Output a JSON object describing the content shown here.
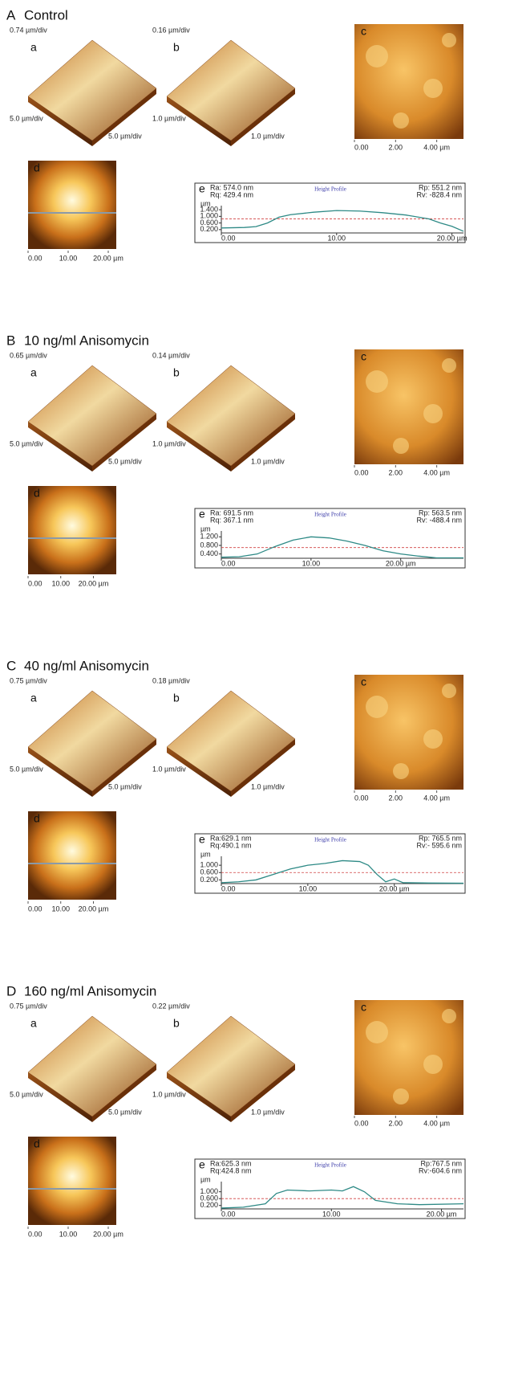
{
  "sections": [
    {
      "letter": "A",
      "title": "Control",
      "panel_a": {
        "label": "a",
        "z_scale": "0.74 µm/div",
        "y_scale": "5.0 µm/div",
        "x_scale": "5.0 µm/div"
      },
      "panel_b": {
        "label": "b",
        "z_scale": "0.16 µm/div",
        "y_scale": "1.0 µm/div",
        "x_scale": "1.0 µm/div"
      },
      "panel_c": {
        "label": "c",
        "xlim": [
          0,
          5.3
        ],
        "xticks": [
          {
            "value": 0,
            "label": "0.00"
          },
          {
            "value": 2,
            "label": "2.00"
          },
          {
            "value": 4,
            "label": "4.00 µm"
          }
        ]
      },
      "panel_d": {
        "label": "d",
        "xlim": [
          0,
          22
        ],
        "xticks": [
          {
            "value": 0,
            "label": "0.00"
          },
          {
            "value": 10,
            "label": "10.00"
          },
          {
            "value": 20,
            "label": "20.00 µm"
          }
        ]
      },
      "panel_e": {
        "label": "e",
        "title": "Height Profile",
        "unit": "µm",
        "stats_left": [
          "Ra: 574.0 nm",
          "Rq: 429.4 nm"
        ],
        "stats_right": [
          "Rp: 551.2 nm",
          "Rv: -828.4 nm"
        ],
        "xlim": [
          0,
          21
        ],
        "ylim": [
          0,
          1.55
        ],
        "xticks": [
          {
            "value": 0,
            "label": "0.00"
          },
          {
            "value": 10,
            "label": "10.00"
          },
          {
            "value": 20,
            "label": "20.00 µm"
          }
        ],
        "yticks": [
          {
            "value": 0.2,
            "label": "0.200"
          },
          {
            "value": 0.6,
            "label": "0.600"
          },
          {
            "value": 1,
            "label": "1.000"
          },
          {
            "value": 1.4,
            "label": "1.400"
          }
        ],
        "reference_line": 0.85,
        "profile": {
          "x": [
            0,
            2,
            3,
            4,
            5,
            6,
            8,
            10,
            12,
            14,
            16,
            18,
            19,
            20,
            21
          ],
          "y": [
            0.3,
            0.33,
            0.38,
            0.6,
            0.95,
            1.1,
            1.25,
            1.35,
            1.32,
            1.22,
            1.08,
            0.85,
            0.6,
            0.4,
            0.1
          ]
        }
      }
    },
    {
      "letter": "B",
      "title": "10 ng/ml Anisomycin",
      "panel_a": {
        "label": "a",
        "z_scale": "0.65 µm/div",
        "y_scale": "5.0 µm/div",
        "x_scale": "5.0 µm/div"
      },
      "panel_b": {
        "label": "b",
        "z_scale": "0.14 µm/div",
        "y_scale": "1.0 µm/div",
        "x_scale": "1.0 µm/div"
      },
      "panel_c": {
        "label": "c",
        "xlim": [
          0,
          5.3
        ],
        "xticks": [
          {
            "value": 0,
            "label": "0.00"
          },
          {
            "value": 2,
            "label": "2.00"
          },
          {
            "value": 4,
            "label": "4.00 µm"
          }
        ]
      },
      "panel_d": {
        "label": "d",
        "xlim": [
          0,
          27
        ],
        "xticks": [
          {
            "value": 0,
            "label": "0.00"
          },
          {
            "value": 10,
            "label": "10.00"
          },
          {
            "value": 20,
            "label": "20.00 µm"
          }
        ]
      },
      "panel_e": {
        "label": "e",
        "title": "Height Profile",
        "unit": "µm",
        "stats_left": [
          "Ra: 691.5 nm",
          "Rq: 367.1 nm"
        ],
        "stats_right": [
          "Rp: 563.5 nm",
          "Rv: -488.4 nm"
        ],
        "xlim": [
          0,
          27
        ],
        "ylim": [
          0.2,
          1.4
        ],
        "xticks": [
          {
            "value": 0,
            "label": "0.00"
          },
          {
            "value": 10,
            "label": "10.00"
          },
          {
            "value": 20,
            "label": "20.00 µm"
          }
        ],
        "yticks": [
          {
            "value": 0.4,
            "label": "0.400"
          },
          {
            "value": 0.8,
            "label": "0.800"
          },
          {
            "value": 1.2,
            "label": "1.200"
          }
        ],
        "reference_line": 0.7,
        "profile": {
          "x": [
            0,
            2,
            4,
            6,
            8,
            10,
            12,
            14,
            16,
            18,
            20,
            22,
            24,
            27
          ],
          "y": [
            0.25,
            0.27,
            0.4,
            0.75,
            1.05,
            1.2,
            1.15,
            1.0,
            0.8,
            0.55,
            0.4,
            0.3,
            0.22,
            0.22
          ]
        }
      }
    },
    {
      "letter": "C",
      "title": "40 ng/ml Anisomycin",
      "panel_a": {
        "label": "a",
        "z_scale": "0.75 µm/div",
        "y_scale": "5.0 µm/div",
        "x_scale": "5.0 µm/div"
      },
      "panel_b": {
        "label": "b",
        "z_scale": "0.18 µm/div",
        "y_scale": "1.0 µm/div",
        "x_scale": "1.0 µm/div"
      },
      "panel_c": {
        "label": "c",
        "xlim": [
          0,
          5.3
        ],
        "xticks": [
          {
            "value": 0,
            "label": "0.00"
          },
          {
            "value": 2,
            "label": "2.00"
          },
          {
            "value": 4,
            "label": "4.00 µm"
          }
        ]
      },
      "panel_d": {
        "label": "d",
        "xlim": [
          0,
          27
        ],
        "xticks": [
          {
            "value": 0,
            "label": "0.00"
          },
          {
            "value": 10,
            "label": "10.00"
          },
          {
            "value": 20,
            "label": "20.00 µm"
          }
        ]
      },
      "panel_e": {
        "label": "e",
        "title": "Height Profile",
        "unit": "µm",
        "stats_left": [
          "Ra:629.1 nm",
          "Rq:490.1 nm"
        ],
        "stats_right": [
          "Rp: 765.5 nm",
          "Rv:- 595.6 nm"
        ],
        "xlim": [
          0,
          28
        ],
        "ylim": [
          0,
          1.4
        ],
        "xticks": [
          {
            "value": 0,
            "label": "0.00"
          },
          {
            "value": 10,
            "label": "10.00"
          },
          {
            "value": 20,
            "label": "20.00 µm"
          }
        ],
        "yticks": [
          {
            "value": 0.2,
            "label": "0.200"
          },
          {
            "value": 0.6,
            "label": "0.600"
          },
          {
            "value": 1,
            "label": "1.000"
          }
        ],
        "reference_line": 0.6,
        "profile": {
          "x": [
            0,
            2,
            4,
            6,
            8,
            10,
            12,
            14,
            16,
            17,
            18,
            19,
            20,
            21,
            24,
            28
          ],
          "y": [
            0.05,
            0.1,
            0.2,
            0.5,
            0.8,
            1.0,
            1.1,
            1.25,
            1.2,
            1.0,
            0.5,
            0.1,
            0.25,
            0.05,
            0.03,
            0.02
          ]
        }
      }
    },
    {
      "letter": "D",
      "title": "160 ng/ml Anisomycin",
      "panel_a": {
        "label": "a",
        "z_scale": "0.75 µm/div",
        "y_scale": "5.0 µm/div",
        "x_scale": "5.0 µm/div"
      },
      "panel_b": {
        "label": "b",
        "z_scale": "0.22 µm/div",
        "y_scale": "1.0 µm/div",
        "x_scale": "1.0 µm/div"
      },
      "panel_c": {
        "label": "c",
        "xlim": [
          0,
          5.3
        ],
        "xticks": [
          {
            "value": 0,
            "label": "0.00"
          },
          {
            "value": 2,
            "label": "2.00"
          },
          {
            "value": 4,
            "label": "4.00 µm"
          }
        ]
      },
      "panel_d": {
        "label": "d",
        "xlim": [
          0,
          22
        ],
        "xticks": [
          {
            "value": 0,
            "label": "0.00"
          },
          {
            "value": 10,
            "label": "10.00"
          },
          {
            "value": 20,
            "label": "20.00 µm"
          }
        ]
      },
      "panel_e": {
        "label": "e",
        "title": "Height Profile",
        "unit": "µm",
        "stats_left": [
          "Ra:625.3 nm",
          "Rq:424.8 nm"
        ],
        "stats_right": [
          "Rp:767.5 nm",
          "Rv:-604.6 nm"
        ],
        "xlim": [
          0,
          22
        ],
        "ylim": [
          0,
          1.5
        ],
        "xticks": [
          {
            "value": 0,
            "label": "0.00"
          },
          {
            "value": 10,
            "label": "10.00"
          },
          {
            "value": 20,
            "label": "20.00 µm"
          }
        ],
        "yticks": [
          {
            "value": 0.2,
            "label": "0.200"
          },
          {
            "value": 0.6,
            "label": "0.600"
          },
          {
            "value": 1,
            "label": "1.000"
          }
        ],
        "reference_line": 0.6,
        "profile": {
          "x": [
            0,
            2,
            4,
            5,
            6,
            8,
            10,
            11,
            12,
            13,
            14,
            16,
            18,
            22
          ],
          "y": [
            0.05,
            0.1,
            0.3,
            0.9,
            1.1,
            1.05,
            1.1,
            1.05,
            1.3,
            1.0,
            0.5,
            0.3,
            0.25,
            0.3
          ]
        }
      }
    }
  ]
}
